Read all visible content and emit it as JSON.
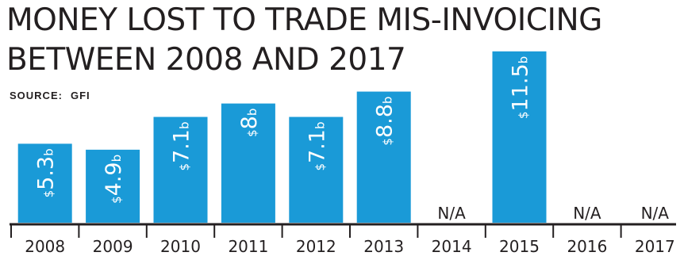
{
  "chart_data": {
    "type": "bar",
    "title_line1": "MONEY LOST TO TRADE MIS-INVOICING",
    "title_line2": "BETWEEN 2008 AND 2017",
    "source_label": "SOURCE:",
    "source_value": "GFI",
    "categories": [
      "2008",
      "2009",
      "2010",
      "2011",
      "2012",
      "2013",
      "2014",
      "2015",
      "2016",
      "2017"
    ],
    "values": [
      5.3,
      4.9,
      7.1,
      8,
      7.1,
      8.8,
      null,
      11.5,
      null,
      null
    ],
    "data_labels": [
      "$5.3b",
      "$4.9b",
      "$7.1b",
      "$8b",
      "$7.1b",
      "$8.8b",
      "N/A",
      "$11.5b",
      "N/A",
      "N/A"
    ],
    "ylim": [
      0,
      12
    ],
    "bar_color": "#1a9ad7",
    "label_color": "#ffffff",
    "text_color": "#231f20"
  }
}
